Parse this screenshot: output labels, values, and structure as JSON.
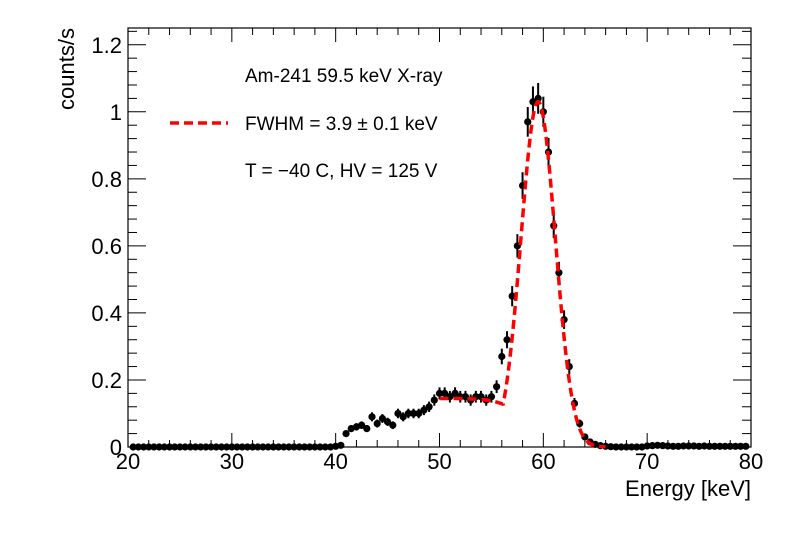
{
  "chart_data": {
    "type": "scatter",
    "xlabel": "Energy [keV]",
    "ylabel": "counts/s",
    "xlim": [
      20,
      80
    ],
    "ylim": [
      0,
      1.25
    ],
    "x_ticks": [
      "20",
      "30",
      "40",
      "50",
      "60",
      "70",
      "80"
    ],
    "y_ticks": [
      "0",
      "0.2",
      "0.4",
      "0.6",
      "0.8",
      "1",
      "1.2"
    ],
    "x_tick_values": [
      20,
      30,
      40,
      50,
      60,
      70,
      80
    ],
    "y_tick_values": [
      0,
      0.2,
      0.4,
      0.6,
      0.8,
      1.0,
      1.2
    ],
    "legend": {
      "title": "Am-241 59.5 keV X-ray",
      "fit_label": "FWHM = 3.9 ± 0.1 keV",
      "note": "T = −40 C, HV = 125 V",
      "fit_color": "#ff0000",
      "placement": "top-left"
    },
    "series": [
      {
        "name": "data",
        "color": "#000000",
        "x": [
          20.5,
          21.0,
          21.5,
          22.0,
          22.5,
          23.0,
          23.5,
          24.0,
          24.5,
          25.0,
          25.5,
          26.0,
          26.5,
          27.0,
          27.5,
          28.0,
          28.5,
          29.0,
          29.5,
          30.0,
          30.5,
          31.0,
          31.5,
          32.0,
          32.5,
          33.0,
          33.5,
          34.0,
          34.5,
          35.0,
          35.5,
          36.0,
          36.5,
          37.0,
          37.5,
          38.0,
          38.5,
          39.0,
          39.5,
          40.0,
          40.5,
          41.0,
          41.5,
          42.0,
          42.5,
          43.0,
          43.5,
          44.0,
          44.5,
          45.0,
          45.5,
          46.0,
          46.5,
          47.0,
          47.5,
          48.0,
          48.5,
          49.0,
          49.5,
          50.0,
          50.5,
          51.0,
          51.5,
          52.0,
          52.5,
          53.0,
          53.5,
          54.0,
          54.5,
          55.0,
          55.5,
          56.0,
          56.5,
          57.0,
          57.5,
          58.0,
          58.5,
          59.0,
          59.5,
          60.0,
          60.5,
          61.0,
          61.5,
          62.0,
          62.5,
          63.0,
          63.5,
          64.0,
          64.5,
          65.0,
          65.5,
          66.0,
          66.5,
          67.0,
          67.5,
          68.0,
          68.5,
          69.0,
          69.5,
          70.0,
          70.5,
          71.0,
          71.5,
          72.0,
          72.5,
          73.0,
          73.5,
          74.0,
          74.5,
          75.0,
          75.5,
          76.0,
          76.5,
          77.0,
          77.5,
          78.0,
          78.5,
          79.0,
          79.5
        ],
        "y": [
          0.0,
          0.0,
          0.0,
          0.0,
          0.0,
          0.0,
          0.0,
          0.0,
          0.0,
          0.0,
          0.0,
          0.0,
          0.0,
          0.0,
          0.0,
          0.0,
          0.0,
          0.0,
          0.0,
          0.0,
          0.0,
          0.0,
          0.0,
          0.0,
          0.0,
          0.0,
          0.0,
          0.0,
          0.0,
          0.0,
          0.0,
          0.0,
          0.0,
          0.0,
          0.0,
          0.0,
          0.0,
          0.0,
          0.0,
          0.002,
          0.005,
          0.04,
          0.055,
          0.06,
          0.065,
          0.055,
          0.09,
          0.07,
          0.085,
          0.075,
          0.065,
          0.1,
          0.09,
          0.1,
          0.1,
          0.1,
          0.11,
          0.12,
          0.14,
          0.16,
          0.16,
          0.15,
          0.16,
          0.15,
          0.15,
          0.14,
          0.15,
          0.15,
          0.14,
          0.15,
          0.18,
          0.27,
          0.32,
          0.45,
          0.6,
          0.78,
          0.97,
          1.03,
          1.04,
          1.0,
          0.88,
          0.66,
          0.52,
          0.38,
          0.24,
          0.13,
          0.07,
          0.03,
          0.015,
          0.008,
          0.004,
          0.002,
          0.001,
          0.0,
          0.0,
          0.0,
          0.0,
          0.0,
          0.0,
          0.003,
          0.004,
          0.005,
          0.004,
          0.003,
          0.002,
          0.002,
          0.003,
          0.003,
          0.003,
          0.002,
          0.003,
          0.002,
          0.002,
          0.002,
          0.002,
          0.002,
          0.002,
          0.002,
          0.002
        ]
      },
      {
        "name": "fit",
        "style": "dashed",
        "color": "#ff0000",
        "model": "gaussian plus flat shoulder",
        "x_range": [
          50,
          66
        ],
        "peak_mean": 59.5,
        "peak_sigma": 1.65,
        "peak_amplitude": 1.03,
        "shoulder_level": 0.145,
        "shoulder_edge": 56
      }
    ]
  }
}
